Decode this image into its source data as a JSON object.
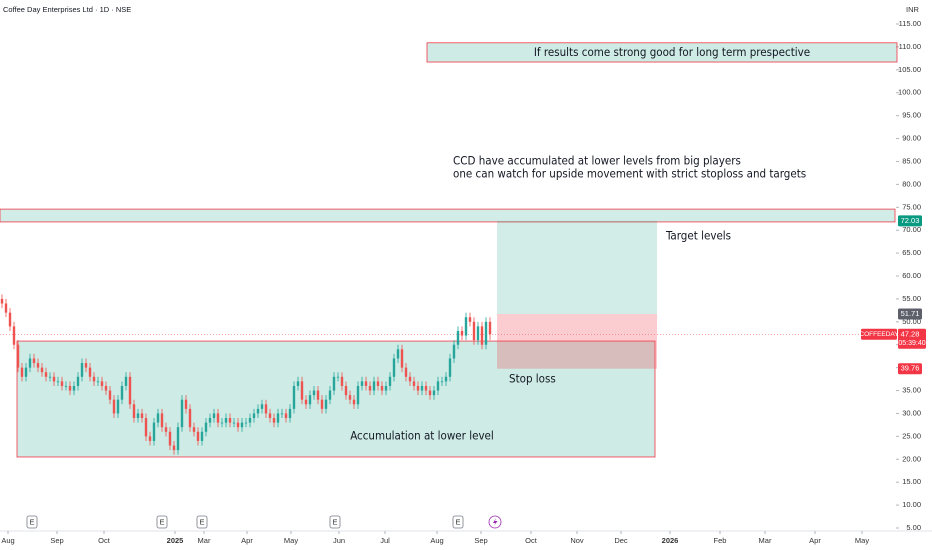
{
  "chart_data": {
    "type": "candlestick",
    "title": "Coffee Day Enterprises Ltd · 1D · NSE",
    "currency": "INR",
    "up_color": "#26a69a",
    "down_color": "#ef5350",
    "grid": false,
    "ylim": [
      5,
      115
    ],
    "yticks": [
      {
        "value": 115,
        "label": "115.00"
      },
      {
        "value": 110,
        "label": "110.00"
      },
      {
        "value": 105,
        "label": "105.00"
      },
      {
        "value": 100,
        "label": "100.00"
      },
      {
        "value": 95,
        "label": "95.00"
      },
      {
        "value": 90,
        "label": "90.00"
      },
      {
        "value": 85,
        "label": "85.00"
      },
      {
        "value": 80,
        "label": "80.00"
      },
      {
        "value": 75,
        "label": "75.00"
      },
      {
        "value": 70,
        "label": "70.00"
      },
      {
        "value": 65,
        "label": "65.00"
      },
      {
        "value": 60,
        "label": "60.00"
      },
      {
        "value": 55,
        "label": "55.00"
      },
      {
        "value": 50,
        "label": "50.00"
      },
      {
        "value": 45,
        "label": "45.00"
      },
      {
        "value": 40,
        "label": "40.00"
      },
      {
        "value": 35,
        "label": "35.00"
      },
      {
        "value": 30,
        "label": "30.00"
      },
      {
        "value": 25,
        "label": "25.00"
      },
      {
        "value": 20,
        "label": "20.00"
      },
      {
        "value": 15,
        "label": "15.00"
      },
      {
        "value": 10,
        "label": "10.00"
      },
      {
        "value": 5,
        "label": "5.00"
      }
    ],
    "xlim": [
      -0.5,
      223.25
    ],
    "xticks": [
      {
        "value": 1.5,
        "label": "Aug"
      },
      {
        "value": 13.75,
        "label": "Sep"
      },
      {
        "value": 25.5,
        "label": "Oct"
      },
      {
        "value": 43.25,
        "label": "2025"
      },
      {
        "value": 50.5,
        "label": "Mar"
      },
      {
        "value": 61.25,
        "label": "Apr"
      },
      {
        "value": 72.25,
        "label": "May"
      },
      {
        "value": 84.25,
        "label": "Jun"
      },
      {
        "value": 95.75,
        "label": "Jul"
      },
      {
        "value": 108.75,
        "label": "Aug"
      },
      {
        "value": 119.75,
        "label": "Sep"
      },
      {
        "value": 132.25,
        "label": "Oct"
      },
      {
        "value": 143.75,
        "label": "Nov"
      },
      {
        "value": 154.75,
        "label": "Dec"
      },
      {
        "value": 167,
        "label": "2026"
      },
      {
        "value": 179.5,
        "label": "Feb"
      },
      {
        "value": 190.75,
        "label": "Mar"
      },
      {
        "value": 203.25,
        "label": "Apr"
      },
      {
        "value": 215,
        "label": "May"
      }
    ],
    "open": [
      55,
      54,
      52,
      49,
      45,
      40,
      38,
      40,
      42,
      41,
      40,
      39,
      38,
      38,
      37,
      37,
      36,
      36,
      35,
      36,
      38,
      41,
      40,
      38,
      37,
      37,
      36,
      35,
      33,
      30,
      33,
      36,
      38,
      32,
      29,
      30,
      29,
      25,
      24,
      28,
      30,
      27,
      26,
      23,
      22,
      27,
      33,
      31,
      27,
      26,
      24,
      26,
      28,
      29,
      30,
      28,
      28,
      29,
      28,
      28,
      27,
      28,
      28,
      29,
      30,
      31,
      32,
      30,
      29,
      28,
      30,
      30,
      29,
      31,
      36,
      37,
      33,
      32,
      34,
      35,
      33,
      31,
      33,
      35,
      38,
      38,
      36,
      34,
      33,
      32,
      36,
      37,
      36,
      35,
      37,
      36,
      35,
      36,
      38,
      42,
      44,
      40,
      38,
      37,
      36,
      35,
      36,
      35,
      34,
      35,
      37,
      37,
      38,
      42,
      45,
      48,
      47,
      51,
      50,
      46,
      49,
      45,
      50
    ],
    "high": [
      56,
      55,
      53,
      50,
      46,
      41,
      41,
      43,
      43,
      42,
      41,
      40,
      39,
      39,
      38,
      38,
      37,
      37,
      37,
      39,
      42,
      42,
      41,
      39,
      38,
      38,
      37,
      36,
      34,
      34,
      37,
      39,
      39,
      33,
      31,
      31,
      30,
      26,
      29,
      31,
      31,
      28,
      27,
      24,
      28,
      34,
      34,
      32,
      28,
      27,
      27,
      29,
      30,
      31,
      31,
      29,
      30,
      30,
      29,
      29,
      29,
      29,
      30,
      31,
      32,
      33,
      33,
      31,
      30,
      31,
      31,
      31,
      32,
      37,
      38,
      38,
      34,
      35,
      36,
      36,
      34,
      34,
      36,
      39,
      39,
      39,
      37,
      35,
      34,
      37,
      38,
      38,
      37,
      38,
      38,
      37,
      37,
      39,
      43,
      45,
      45,
      41,
      39,
      38,
      37,
      37,
      37,
      36,
      36,
      38,
      38,
      39,
      43,
      46,
      49,
      49,
      52,
      52,
      51,
      50,
      50,
      51,
      51
    ],
    "low": [
      53,
      51,
      48,
      44,
      39,
      37,
      37,
      39,
      40,
      39,
      38,
      37,
      37,
      36,
      36,
      35,
      35,
      34,
      34,
      35,
      37,
      39,
      37,
      36,
      36,
      35,
      34,
      32,
      29,
      29,
      32,
      35,
      31,
      28,
      28,
      28,
      24,
      23,
      23,
      27,
      26,
      25,
      22,
      21,
      21,
      26,
      30,
      26,
      25,
      23,
      23,
      25,
      27,
      28,
      27,
      27,
      27,
      27,
      27,
      26,
      26,
      27,
      27,
      28,
      29,
      30,
      29,
      28,
      27,
      27,
      29,
      28,
      28,
      30,
      35,
      32,
      31,
      31,
      33,
      32,
      30,
      30,
      32,
      34,
      37,
      35,
      33,
      32,
      31,
      31,
      35,
      35,
      34,
      34,
      35,
      34,
      34,
      35,
      37,
      41,
      39,
      37,
      36,
      35,
      34,
      34,
      34,
      33,
      33,
      34,
      36,
      36,
      37,
      41,
      44,
      46,
      46,
      49,
      45,
      45,
      44,
      44,
      46
    ],
    "close": [
      54,
      52,
      49,
      45,
      40,
      38,
      40,
      42,
      41,
      40,
      39,
      38,
      38,
      37,
      37,
      36,
      36,
      35,
      36,
      38,
      41,
      40,
      38,
      37,
      37,
      36,
      35,
      33,
      30,
      33,
      36,
      38,
      32,
      29,
      30,
      29,
      25,
      24,
      28,
      30,
      27,
      26,
      23,
      22,
      27,
      33,
      31,
      27,
      26,
      24,
      26,
      28,
      29,
      30,
      28,
      28,
      29,
      28,
      28,
      27,
      28,
      28,
      29,
      30,
      31,
      32,
      30,
      29,
      28,
      30,
      30,
      29,
      31,
      36,
      37,
      33,
      32,
      34,
      35,
      33,
      31,
      33,
      35,
      38,
      38,
      36,
      34,
      33,
      32,
      36,
      37,
      36,
      35,
      37,
      36,
      35,
      36,
      38,
      42,
      44,
      40,
      38,
      37,
      36,
      35,
      36,
      35,
      34,
      35,
      37,
      37,
      38,
      42,
      45,
      48,
      47,
      51,
      50,
      46,
      49,
      45,
      50,
      47.28
    ],
    "last_price": 47.28,
    "symbol": "COFFEEDAY",
    "countdown": "05:39:40",
    "target_price": 72.03,
    "entry_price": 51.71,
    "stop_price": 39.76,
    "position_x": [
      123.75,
      163.75
    ],
    "resistance_band": {
      "y": [
        71.8,
        74.6
      ]
    },
    "results_box": {
      "x": [
        106.25,
        223.75
      ],
      "y": [
        106.7,
        110.9
      ],
      "text": "If results come strong good for long term prespective"
    },
    "accumulation_box": {
      "x": [
        3.75,
        163.25
      ],
      "y": [
        20.5,
        45.8
      ],
      "text": "Accumulation at lower level"
    },
    "note": [
      "CCD have accumulated at lower levels from big players",
      "one can watch for upside movement with strict stoploss and targets"
    ],
    "target_text": "Target levels",
    "stop_text": "Stop loss",
    "events": [
      {
        "x": 7.5,
        "label": "E"
      },
      {
        "x": 40,
        "label": "E"
      },
      {
        "x": 50,
        "label": "E"
      },
      {
        "x": 83.25,
        "label": "E"
      },
      {
        "x": 114,
        "label": "E"
      }
    ]
  }
}
